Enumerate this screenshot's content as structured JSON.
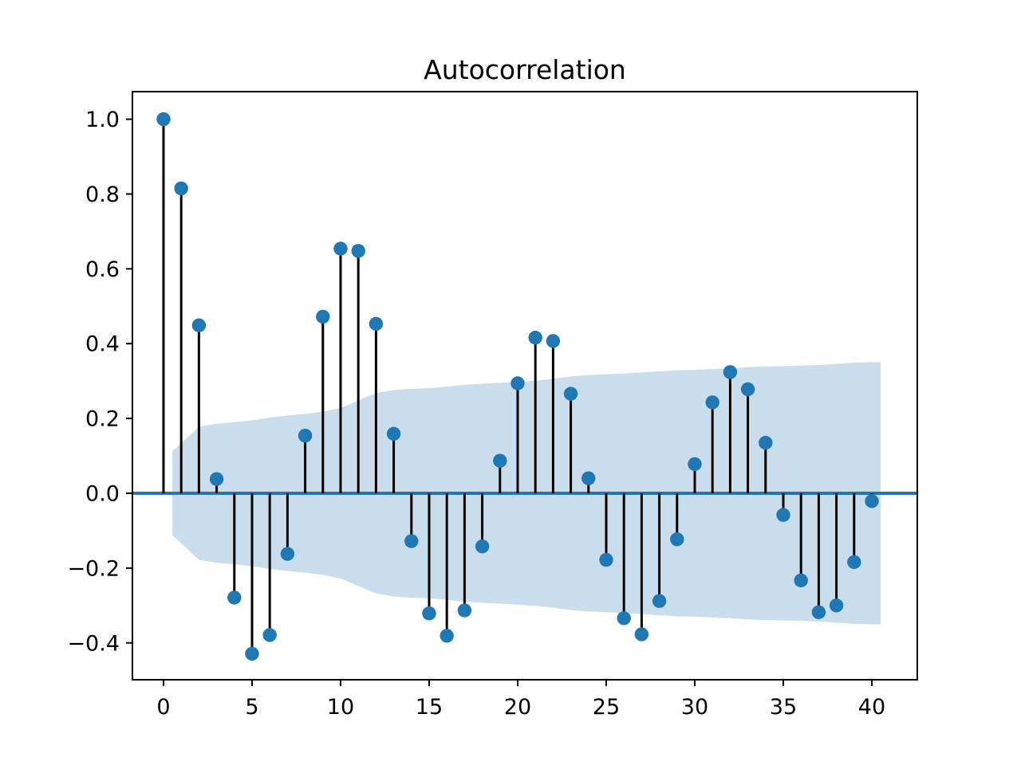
{
  "title": "Autocorrelation",
  "chart_data": {
    "type": "stem",
    "title": "Autocorrelation",
    "xlabel": "",
    "ylabel": "",
    "x": [
      0,
      1,
      2,
      3,
      4,
      5,
      6,
      7,
      8,
      9,
      10,
      11,
      12,
      13,
      14,
      15,
      16,
      17,
      18,
      19,
      20,
      21,
      22,
      23,
      24,
      25,
      26,
      27,
      28,
      29,
      30,
      31,
      32,
      33,
      34,
      35,
      36,
      37,
      38,
      39,
      40
    ],
    "values": [
      1.0,
      0.815,
      0.449,
      0.038,
      -0.279,
      -0.429,
      -0.379,
      -0.162,
      0.154,
      0.472,
      0.654,
      0.648,
      0.453,
      0.159,
      -0.128,
      -0.321,
      -0.381,
      -0.313,
      -0.142,
      0.087,
      0.294,
      0.416,
      0.407,
      0.266,
      0.04,
      -0.178,
      -0.334,
      -0.377,
      -0.288,
      -0.123,
      0.078,
      0.243,
      0.324,
      0.278,
      0.135,
      -0.058,
      -0.233,
      -0.318,
      -0.3,
      -0.184,
      -0.021
    ],
    "confidence_band": {
      "description": "Bartlett confidence interval, symmetric about zero, drawn from lag 0.5 to lag 40.5",
      "x_start": 0.5,
      "x_end": 40.5,
      "lags": [
        1,
        2,
        3,
        4,
        5,
        6,
        7,
        8,
        9,
        10,
        11,
        12,
        13,
        14,
        15,
        16,
        17,
        18,
        19,
        20,
        21,
        22,
        23,
        24,
        25,
        26,
        27,
        28,
        29,
        30,
        31,
        32,
        33,
        34,
        35,
        36,
        37,
        38,
        39,
        40
      ],
      "upper": [
        0.112,
        0.178,
        0.186,
        0.19,
        0.195,
        0.202,
        0.208,
        0.212,
        0.218,
        0.228,
        0.248,
        0.268,
        0.276,
        0.279,
        0.281,
        0.285,
        0.29,
        0.293,
        0.295,
        0.298,
        0.301,
        0.306,
        0.312,
        0.316,
        0.318,
        0.32,
        0.323,
        0.326,
        0.329,
        0.33,
        0.332,
        0.334,
        0.337,
        0.339,
        0.34,
        0.341,
        0.343,
        0.346,
        0.349,
        0.351
      ],
      "symmetric": true
    },
    "xticks": [
      0,
      5,
      10,
      15,
      20,
      25,
      30,
      35,
      40
    ],
    "xtick_labels": [
      "0",
      "5",
      "10",
      "15",
      "20",
      "25",
      "30",
      "35",
      "40"
    ],
    "yticks": [
      1.0,
      0.8,
      0.6,
      0.4,
      0.2,
      0.0,
      -0.2,
      -0.4
    ],
    "ytick_labels": [
      "1.0",
      "0.8",
      "0.6",
      "0.4",
      "0.2",
      "0.0",
      "−0.2",
      "−0.4"
    ],
    "xlim": [
      -1.756,
      42.568
    ],
    "ylim": [
      -0.4985,
      1.0737
    ],
    "grid": false,
    "legend": null,
    "colors": {
      "marker": "#1f77b4",
      "stem": "#000000",
      "zero_line": "#1f77b4",
      "band": "#c9ddec",
      "axis": "#000000",
      "background": "#ffffff"
    }
  }
}
